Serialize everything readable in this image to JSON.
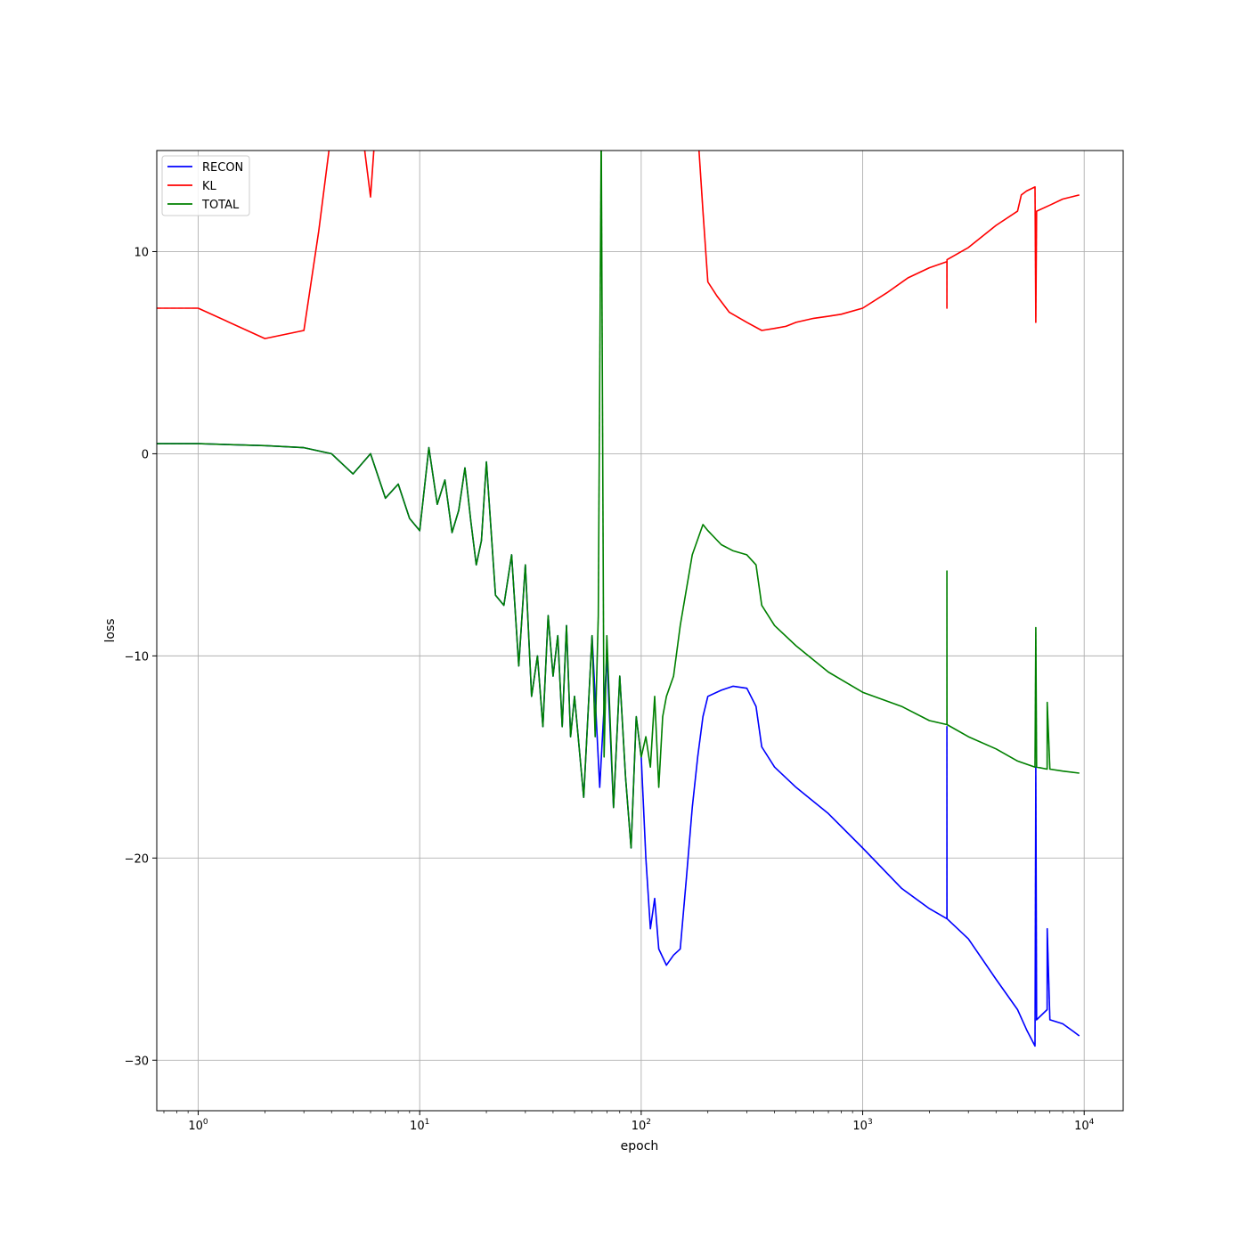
{
  "chart_data": {
    "type": "line",
    "title": "",
    "xlabel": "epoch",
    "ylabel": "loss",
    "x_scale": "log",
    "xlim": [
      0.65,
      15000
    ],
    "ylim": [
      -32.5,
      15
    ],
    "grid": true,
    "legend_position": "top-left",
    "x_ticks": [
      {
        "value": 1,
        "base": "10",
        "exp": "0"
      },
      {
        "value": 10,
        "base": "10",
        "exp": "1"
      },
      {
        "value": 100,
        "base": "10",
        "exp": "2"
      },
      {
        "value": 1000,
        "base": "10",
        "exp": "3"
      },
      {
        "value": 10000,
        "base": "10",
        "exp": "4"
      }
    ],
    "y_ticks": [
      {
        "value": 10,
        "label": "10"
      },
      {
        "value": 0,
        "label": "0"
      },
      {
        "value": -10,
        "label": "−10"
      },
      {
        "value": -20,
        "label": "−20"
      },
      {
        "value": -30,
        "label": "−30"
      }
    ],
    "series": [
      {
        "name": "RECON",
        "color": "#0000ff",
        "x": [
          0.65,
          1,
          2,
          3,
          4,
          5,
          6,
          7,
          8,
          9,
          10,
          11,
          12,
          13,
          14,
          15,
          16,
          17,
          18,
          19,
          20,
          22,
          24,
          26,
          28,
          30,
          32,
          34,
          36,
          38,
          40,
          42,
          44,
          46,
          48,
          50,
          55,
          60,
          65,
          70,
          75,
          80,
          85,
          90,
          95,
          100,
          105,
          110,
          115,
          120,
          130,
          140,
          150,
          160,
          170,
          180,
          190,
          200,
          230,
          260,
          300,
          330,
          350,
          400,
          500,
          700,
          1000,
          1500,
          2000,
          2400,
          2401,
          2402,
          3000,
          4000,
          5000,
          5500,
          6000,
          6050,
          6100,
          6800,
          6810,
          7000,
          8000,
          9000,
          9500
        ],
        "values": [
          0.5,
          0.5,
          0.4,
          0.3,
          0.0,
          -1.0,
          0.0,
          -2.2,
          -1.5,
          -3.2,
          -3.8,
          0.3,
          -2.5,
          -1.3,
          -3.9,
          -2.8,
          -0.7,
          -3.3,
          -5.5,
          -4.3,
          -0.4,
          -7.0,
          -7.5,
          -5.0,
          -10.5,
          -5.5,
          -12.0,
          -10.0,
          -13.5,
          -8.0,
          -11.0,
          -9.0,
          -13.5,
          -8.5,
          -14.0,
          -12.0,
          -17.0,
          -9.0,
          -16.5,
          -10.0,
          -17.5,
          -11.0,
          -16.0,
          -19.5,
          -13.0,
          -15.0,
          -20.0,
          -23.5,
          -22.0,
          -24.5,
          -25.3,
          -24.8,
          -24.5,
          -21.0,
          -17.5,
          -15.0,
          -13.0,
          -12.0,
          -11.7,
          -11.5,
          -11.6,
          -12.5,
          -14.5,
          -15.5,
          -16.5,
          -17.8,
          -19.5,
          -21.5,
          -22.5,
          -23.0,
          -13.5,
          -23.0,
          -24.0,
          -26.0,
          -27.5,
          -28.5,
          -29.3,
          -15.5,
          -28.0,
          -27.5,
          -23.5,
          -28.0,
          -28.2,
          -28.6,
          -28.8
        ]
      },
      {
        "name": "KL",
        "color": "#ff0000",
        "x": [
          0.65,
          1,
          2,
          3,
          3.5,
          4,
          5,
          5.5,
          6,
          6.3,
          180,
          190,
          200,
          220,
          250,
          300,
          350,
          400,
          450,
          500,
          600,
          700,
          800,
          1000,
          1300,
          1600,
          2000,
          2400,
          2401,
          2402,
          3000,
          4000,
          5000,
          5200,
          5500,
          6000,
          6050,
          6100,
          7000,
          8000,
          9500
        ],
        "values": [
          7.2,
          7.2,
          5.7,
          6.1,
          11.0,
          16.0,
          16.0,
          16.0,
          12.7,
          16.0,
          16.0,
          12.0,
          8.5,
          7.8,
          7.0,
          6.5,
          6.1,
          6.2,
          6.3,
          6.5,
          6.7,
          6.8,
          6.9,
          7.2,
          8.0,
          8.7,
          9.2,
          9.5,
          7.2,
          9.6,
          10.2,
          11.3,
          12.0,
          12.8,
          13.0,
          13.2,
          6.5,
          12.0,
          12.3,
          12.6,
          12.8
        ]
      },
      {
        "name": "TOTAL",
        "color": "#008000",
        "x": [
          0.65,
          1,
          2,
          3,
          4,
          5,
          6,
          7,
          8,
          9,
          10,
          11,
          12,
          13,
          14,
          15,
          16,
          17,
          18,
          19,
          20,
          22,
          24,
          26,
          28,
          30,
          32,
          34,
          36,
          38,
          40,
          42,
          44,
          46,
          48,
          50,
          55,
          60,
          62,
          64,
          66,
          68,
          70,
          75,
          80,
          85,
          90,
          95,
          100,
          105,
          110,
          115,
          120,
          125,
          130,
          140,
          150,
          170,
          190,
          200,
          230,
          260,
          300,
          330,
          350,
          400,
          500,
          700,
          1000,
          1500,
          2000,
          2400,
          2401,
          2402,
          3000,
          4000,
          5000,
          6000,
          6050,
          6100,
          6800,
          6810,
          7000,
          8000,
          9500
        ],
        "values": [
          0.5,
          0.5,
          0.4,
          0.3,
          0.0,
          -1.0,
          0.0,
          -2.2,
          -1.5,
          -3.2,
          -3.8,
          0.3,
          -2.5,
          -1.3,
          -3.9,
          -2.8,
          -0.7,
          -3.3,
          -5.5,
          -4.3,
          -0.4,
          -7.0,
          -7.5,
          -5.0,
          -10.5,
          -5.5,
          -12.0,
          -10.0,
          -13.5,
          -8.0,
          -11.0,
          -9.0,
          -13.5,
          -8.5,
          -14.0,
          -12.0,
          -17.0,
          -9.0,
          -14.0,
          -8.0,
          16.0,
          -15.0,
          -9.0,
          -17.5,
          -11.0,
          -16.0,
          -19.5,
          -13.0,
          -15.0,
          -14.0,
          -15.5,
          -12.0,
          -16.5,
          -13.0,
          -12.0,
          -11.0,
          -8.5,
          -5.0,
          -3.5,
          -3.8,
          -4.5,
          -4.8,
          -5.0,
          -5.5,
          -7.5,
          -8.5,
          -9.5,
          -10.8,
          -11.8,
          -12.5,
          -13.2,
          -13.4,
          -5.8,
          -13.4,
          -14.0,
          -14.6,
          -15.2,
          -15.5,
          -8.6,
          -15.5,
          -15.6,
          -12.3,
          -15.6,
          -15.7,
          -15.8
        ]
      }
    ]
  }
}
